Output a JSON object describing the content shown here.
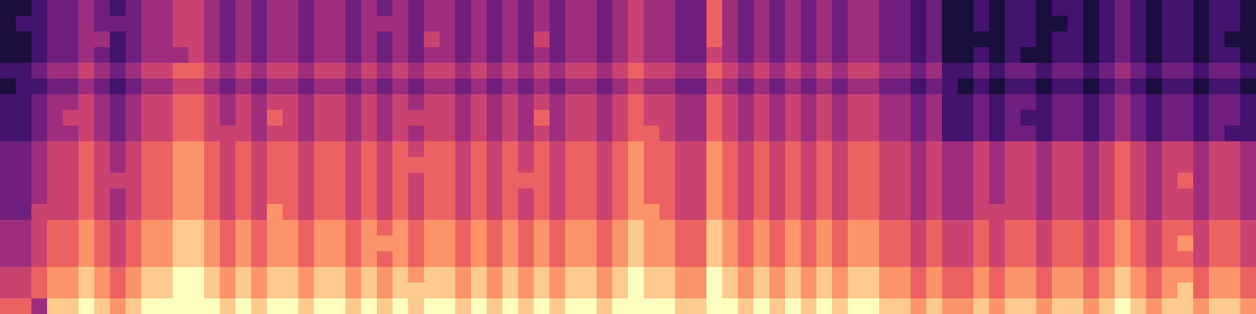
{
  "chart_data": {
    "type": "heatmap",
    "tick_labels": false,
    "zlim": [
      0,
      9
    ],
    "cells": [
      [
        1,
        1,
        2,
        3,
        3,
        4,
        3,
        2,
        3,
        4,
        4,
        5,
        5,
        4,
        3,
        4,
        3,
        4,
        4,
        3,
        4,
        4,
        3,
        4,
        3,
        4,
        3,
        4,
        4,
        3,
        4,
        3,
        4,
        3,
        4,
        3,
        4,
        4,
        3,
        4,
        5,
        4,
        4,
        3,
        3,
        6,
        4,
        3,
        4,
        3,
        4,
        3,
        4,
        3,
        4,
        4,
        3,
        3,
        2,
        3,
        1,
        1,
        2,
        1,
        2,
        2,
        1,
        2,
        2,
        1,
        2,
        3,
        2,
        1,
        2,
        2,
        1,
        2,
        2,
        1
      ],
      [
        1,
        2,
        2,
        3,
        3,
        4,
        3,
        3,
        3,
        4,
        4,
        5,
        5,
        4,
        3,
        4,
        3,
        4,
        4,
        3,
        4,
        4,
        3,
        4,
        4,
        4,
        3,
        4,
        4,
        3,
        4,
        3,
        4,
        3,
        4,
        3,
        4,
        4,
        3,
        4,
        5,
        4,
        4,
        3,
        3,
        6,
        4,
        3,
        4,
        3,
        4,
        3,
        4,
        3,
        4,
        4,
        3,
        3,
        2,
        3,
        1,
        1,
        2,
        1,
        2,
        2,
        1,
        1,
        2,
        1,
        2,
        3,
        2,
        1,
        2,
        2,
        1,
        2,
        2,
        1
      ],
      [
        1,
        1,
        2,
        3,
        3,
        4,
        4,
        2,
        3,
        4,
        4,
        5,
        5,
        4,
        3,
        4,
        3,
        4,
        4,
        3,
        4,
        4,
        3,
        4,
        3,
        4,
        3,
        5,
        4,
        3,
        4,
        3,
        4,
        3,
        5,
        3,
        4,
        4,
        3,
        4,
        5,
        4,
        4,
        3,
        3,
        6,
        4,
        3,
        4,
        3,
        4,
        3,
        4,
        3,
        4,
        4,
        3,
        3,
        2,
        3,
        1,
        1,
        1,
        1,
        2,
        2,
        1,
        2,
        2,
        1,
        2,
        3,
        2,
        1,
        2,
        2,
        1,
        2,
        1,
        1
      ],
      [
        1,
        1,
        2,
        3,
        3,
        4,
        3,
        2,
        3,
        4,
        4,
        4,
        5,
        4,
        3,
        4,
        3,
        4,
        4,
        3,
        4,
        4,
        3,
        4,
        3,
        4,
        3,
        4,
        4,
        3,
        4,
        3,
        4,
        3,
        4,
        3,
        4,
        4,
        3,
        4,
        5,
        4,
        4,
        3,
        3,
        5,
        4,
        3,
        4,
        3,
        4,
        3,
        4,
        3,
        4,
        4,
        3,
        3,
        2,
        3,
        1,
        1,
        2,
        1,
        2,
        1,
        1,
        2,
        2,
        1,
        2,
        3,
        2,
        1,
        2,
        2,
        1,
        2,
        2,
        1
      ],
      [
        2,
        2,
        3,
        4,
        4,
        5,
        4,
        3,
        4,
        5,
        5,
        6,
        6,
        5,
        4,
        5,
        4,
        5,
        5,
        4,
        5,
        5,
        4,
        5,
        4,
        5,
        4,
        5,
        5,
        4,
        5,
        4,
        5,
        4,
        5,
        4,
        5,
        5,
        4,
        5,
        6,
        5,
        5,
        4,
        4,
        6,
        5,
        4,
        5,
        4,
        5,
        4,
        5,
        4,
        5,
        5,
        4,
        4,
        3,
        4,
        2,
        2,
        3,
        2,
        3,
        3,
        2,
        3,
        3,
        2,
        3,
        4,
        3,
        2,
        3,
        3,
        2,
        3,
        3,
        2
      ],
      [
        1,
        2,
        2,
        3,
        3,
        4,
        3,
        2,
        3,
        4,
        4,
        5,
        5,
        4,
        3,
        4,
        3,
        4,
        4,
        3,
        4,
        4,
        3,
        4,
        3,
        4,
        3,
        4,
        4,
        3,
        4,
        3,
        4,
        3,
        4,
        3,
        4,
        4,
        3,
        4,
        5,
        4,
        4,
        3,
        3,
        5,
        4,
        3,
        4,
        3,
        4,
        3,
        4,
        3,
        4,
        4,
        3,
        3,
        2,
        3,
        2,
        1,
        2,
        1,
        2,
        2,
        1,
        2,
        2,
        1,
        2,
        3,
        2,
        1,
        2,
        2,
        1,
        2,
        2,
        1
      ],
      [
        2,
        2,
        3,
        4,
        4,
        5,
        4,
        3,
        4,
        5,
        5,
        6,
        6,
        5,
        4,
        5,
        4,
        5,
        5,
        4,
        5,
        5,
        4,
        5,
        4,
        5,
        4,
        5,
        5,
        4,
        5,
        4,
        5,
        4,
        5,
        4,
        5,
        5,
        4,
        5,
        6,
        5,
        5,
        4,
        4,
        6,
        5,
        4,
        5,
        4,
        5,
        4,
        5,
        4,
        5,
        5,
        4,
        4,
        3,
        4,
        2,
        2,
        3,
        2,
        3,
        3,
        2,
        3,
        3,
        2,
        3,
        4,
        3,
        2,
        3,
        3,
        2,
        3,
        3,
        2
      ],
      [
        2,
        2,
        3,
        4,
        5,
        5,
        4,
        3,
        4,
        5,
        5,
        6,
        6,
        5,
        4,
        5,
        4,
        6,
        5,
        4,
        5,
        5,
        4,
        5,
        4,
        5,
        5,
        5,
        5,
        4,
        5,
        4,
        5,
        4,
        6,
        4,
        5,
        5,
        4,
        5,
        6,
        5,
        5,
        4,
        4,
        6,
        5,
        4,
        5,
        4,
        5,
        4,
        5,
        4,
        5,
        5,
        4,
        4,
        3,
        4,
        2,
        2,
        3,
        2,
        3,
        2,
        2,
        3,
        3,
        2,
        3,
        4,
        3,
        2,
        3,
        3,
        2,
        3,
        3,
        2
      ],
      [
        2,
        2,
        3,
        4,
        4,
        5,
        4,
        3,
        4,
        5,
        5,
        6,
        6,
        5,
        5,
        5,
        4,
        5,
        5,
        4,
        5,
        5,
        4,
        5,
        4,
        5,
        4,
        5,
        5,
        4,
        5,
        4,
        5,
        4,
        5,
        4,
        5,
        5,
        4,
        5,
        6,
        6,
        5,
        4,
        4,
        6,
        5,
        4,
        5,
        4,
        5,
        4,
        5,
        4,
        5,
        5,
        4,
        4,
        3,
        4,
        2,
        2,
        3,
        2,
        3,
        3,
        2,
        3,
        3,
        2,
        3,
        4,
        3,
        2,
        3,
        3,
        2,
        3,
        2,
        2
      ],
      [
        3,
        3,
        4,
        5,
        5,
        6,
        5,
        4,
        5,
        6,
        6,
        7,
        7,
        6,
        5,
        6,
        5,
        6,
        6,
        5,
        6,
        6,
        5,
        6,
        5,
        6,
        5,
        6,
        6,
        5,
        6,
        5,
        6,
        5,
        6,
        5,
        6,
        6,
        5,
        6,
        7,
        6,
        6,
        5,
        5,
        7,
        6,
        5,
        6,
        5,
        6,
        5,
        6,
        5,
        6,
        6,
        5,
        5,
        4,
        5,
        4,
        4,
        5,
        4,
        5,
        5,
        4,
        5,
        5,
        4,
        5,
        6,
        5,
        4,
        5,
        5,
        4,
        5,
        5,
        4
      ],
      [
        3,
        3,
        4,
        5,
        5,
        6,
        5,
        4,
        5,
        6,
        6,
        7,
        7,
        6,
        5,
        6,
        5,
        6,
        6,
        5,
        6,
        6,
        5,
        6,
        5,
        6,
        6,
        6,
        6,
        5,
        6,
        5,
        6,
        5,
        6,
        5,
        6,
        6,
        5,
        6,
        7,
        6,
        6,
        5,
        5,
        7,
        6,
        5,
        6,
        5,
        6,
        5,
        6,
        5,
        6,
        6,
        5,
        5,
        4,
        5,
        4,
        4,
        5,
        4,
        5,
        5,
        4,
        5,
        5,
        4,
        5,
        6,
        5,
        4,
        5,
        5,
        4,
        5,
        5,
        4
      ],
      [
        3,
        3,
        4,
        5,
        5,
        6,
        5,
        5,
        5,
        6,
        6,
        7,
        7,
        6,
        5,
        6,
        5,
        6,
        6,
        5,
        6,
        6,
        5,
        6,
        5,
        6,
        5,
        6,
        6,
        5,
        6,
        5,
        6,
        6,
        6,
        5,
        6,
        6,
        5,
        6,
        7,
        6,
        6,
        5,
        5,
        7,
        6,
        5,
        6,
        5,
        6,
        5,
        6,
        5,
        6,
        6,
        5,
        5,
        4,
        5,
        4,
        4,
        5,
        4,
        5,
        5,
        4,
        5,
        5,
        4,
        5,
        6,
        5,
        4,
        5,
        6,
        4,
        5,
        5,
        4
      ],
      [
        3,
        3,
        4,
        5,
        5,
        6,
        5,
        4,
        5,
        6,
        6,
        7,
        7,
        6,
        5,
        6,
        5,
        6,
        6,
        5,
        6,
        6,
        5,
        6,
        5,
        6,
        5,
        6,
        6,
        5,
        6,
        5,
        6,
        5,
        6,
        5,
        6,
        6,
        5,
        6,
        7,
        6,
        6,
        5,
        5,
        7,
        6,
        5,
        6,
        5,
        6,
        5,
        6,
        5,
        6,
        6,
        5,
        5,
        4,
        5,
        4,
        4,
        5,
        4,
        5,
        5,
        4,
        5,
        5,
        4,
        5,
        6,
        5,
        4,
        5,
        5,
        4,
        5,
        5,
        4
      ],
      [
        3,
        3,
        5,
        5,
        5,
        6,
        5,
        4,
        5,
        6,
        6,
        7,
        7,
        6,
        5,
        6,
        5,
        7,
        6,
        5,
        6,
        6,
        5,
        6,
        5,
        6,
        5,
        6,
        6,
        5,
        6,
        5,
        6,
        5,
        6,
        5,
        6,
        6,
        5,
        6,
        7,
        7,
        6,
        5,
        5,
        7,
        6,
        5,
        6,
        5,
        6,
        5,
        6,
        5,
        6,
        6,
        5,
        5,
        4,
        5,
        4,
        4,
        5,
        5,
        5,
        5,
        4,
        5,
        5,
        4,
        5,
        6,
        5,
        4,
        5,
        5,
        4,
        5,
        5,
        4
      ],
      [
        4,
        4,
        5,
        6,
        6,
        7,
        6,
        5,
        6,
        7,
        7,
        8,
        8,
        7,
        6,
        7,
        6,
        7,
        7,
        6,
        7,
        7,
        6,
        7,
        6,
        7,
        6,
        7,
        7,
        6,
        7,
        6,
        7,
        6,
        7,
        6,
        7,
        7,
        6,
        7,
        8,
        7,
        7,
        6,
        6,
        8,
        7,
        6,
        7,
        6,
        7,
        6,
        7,
        6,
        7,
        7,
        6,
        6,
        5,
        6,
        5,
        5,
        6,
        5,
        6,
        6,
        5,
        6,
        6,
        5,
        6,
        7,
        6,
        5,
        6,
        6,
        5,
        6,
        6,
        5
      ],
      [
        4,
        4,
        5,
        6,
        6,
        7,
        6,
        5,
        6,
        7,
        7,
        8,
        8,
        7,
        6,
        7,
        6,
        7,
        7,
        6,
        7,
        7,
        6,
        7,
        7,
        7,
        6,
        7,
        7,
        6,
        7,
        6,
        7,
        6,
        7,
        6,
        7,
        7,
        6,
        7,
        8,
        7,
        7,
        6,
        6,
        8,
        7,
        6,
        7,
        6,
        7,
        6,
        7,
        6,
        7,
        7,
        6,
        6,
        5,
        6,
        5,
        5,
        6,
        5,
        6,
        6,
        5,
        6,
        6,
        5,
        6,
        7,
        6,
        5,
        6,
        7,
        5,
        6,
        6,
        5
      ],
      [
        4,
        4,
        5,
        6,
        6,
        7,
        6,
        5,
        6,
        7,
        7,
        8,
        8,
        7,
        6,
        7,
        6,
        7,
        7,
        6,
        7,
        7,
        6,
        7,
        6,
        7,
        6,
        7,
        7,
        6,
        7,
        6,
        7,
        6,
        7,
        6,
        7,
        7,
        6,
        7,
        8,
        7,
        7,
        6,
        6,
        8,
        7,
        6,
        7,
        6,
        7,
        6,
        7,
        6,
        7,
        7,
        6,
        6,
        5,
        6,
        5,
        5,
        6,
        5,
        6,
        6,
        5,
        6,
        6,
        5,
        6,
        7,
        6,
        5,
        6,
        6,
        5,
        6,
        6,
        5
      ],
      [
        5,
        5,
        6,
        7,
        7,
        8,
        7,
        6,
        7,
        8,
        8,
        9,
        9,
        8,
        7,
        8,
        7,
        8,
        8,
        7,
        8,
        8,
        7,
        8,
        7,
        8,
        7,
        8,
        8,
        7,
        8,
        7,
        8,
        7,
        8,
        7,
        8,
        8,
        7,
        8,
        9,
        8,
        8,
        7,
        7,
        9,
        8,
        7,
        8,
        7,
        8,
        7,
        8,
        7,
        8,
        8,
        7,
        7,
        6,
        7,
        6,
        6,
        7,
        6,
        7,
        7,
        6,
        7,
        7,
        6,
        7,
        8,
        7,
        6,
        7,
        7,
        6,
        7,
        7,
        6
      ],
      [
        5,
        5,
        6,
        7,
        7,
        8,
        7,
        6,
        7,
        8,
        8,
        9,
        9,
        8,
        7,
        8,
        7,
        8,
        8,
        7,
        8,
        8,
        7,
        8,
        7,
        8,
        8,
        8,
        8,
        7,
        8,
        7,
        8,
        7,
        8,
        7,
        8,
        8,
        7,
        8,
        9,
        8,
        8,
        7,
        7,
        9,
        8,
        7,
        8,
        7,
        8,
        7,
        8,
        7,
        8,
        8,
        7,
        7,
        6,
        7,
        6,
        6,
        7,
        6,
        7,
        7,
        6,
        7,
        7,
        6,
        7,
        8,
        7,
        6,
        7,
        8,
        6,
        7,
        7,
        6
      ],
      [
        6,
        6,
        4,
        8,
        8,
        9,
        8,
        7,
        8,
        9,
        9,
        9,
        9,
        9,
        8,
        9,
        8,
        9,
        9,
        8,
        9,
        9,
        8,
        9,
        8,
        9,
        8,
        9,
        9,
        8,
        9,
        8,
        9,
        8,
        9,
        8,
        9,
        9,
        8,
        9,
        9,
        9,
        9,
        8,
        8,
        9,
        9,
        8,
        9,
        8,
        9,
        8,
        9,
        8,
        9,
        9,
        8,
        8,
        7,
        8,
        7,
        7,
        8,
        7,
        8,
        8,
        7,
        8,
        8,
        7,
        8,
        9,
        8,
        7,
        8,
        8,
        7,
        8,
        8,
        7
      ]
    ]
  }
}
